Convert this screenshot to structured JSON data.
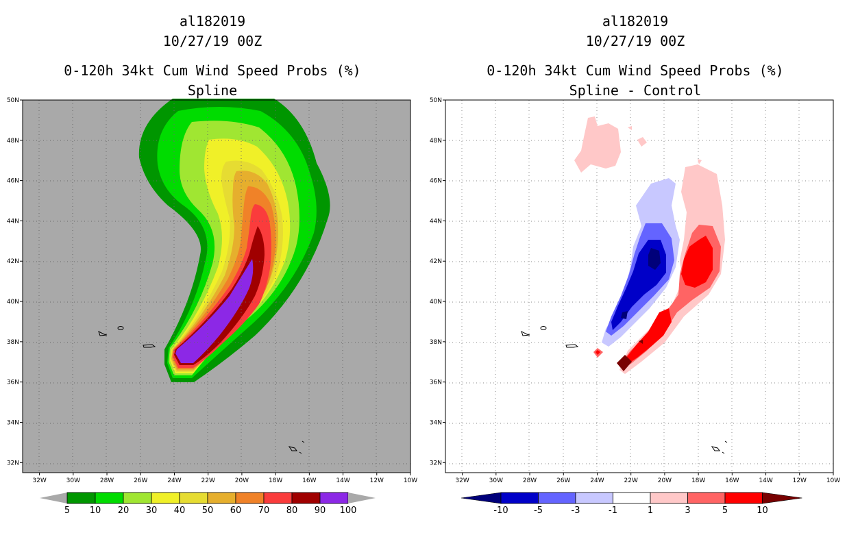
{
  "chart_data": [
    {
      "type": "heatmap",
      "storm_id": "al182019",
      "date": "10/27/19 00Z",
      "title": "0-120h 34kt Cum Wind Speed Probs (%)",
      "subtitle": "Spline",
      "x_ticks": [
        "32W",
        "30W",
        "28W",
        "26W",
        "24W",
        "22W",
        "20W",
        "18W",
        "16W",
        "14W",
        "12W",
        "10W"
      ],
      "y_ticks": [
        "32N",
        "34N",
        "36N",
        "38N",
        "40N",
        "42N",
        "44N",
        "46N",
        "48N",
        "50N"
      ],
      "xlim": [
        -33,
        -10
      ],
      "ylim": [
        31.5,
        50
      ],
      "background_color": "#a9a9a9",
      "grid": true,
      "colorbar": {
        "labels": [
          "5",
          "10",
          "20",
          "30",
          "40",
          "50",
          "60",
          "70",
          "80",
          "90",
          "100"
        ],
        "colors": [
          "#009600",
          "#00dc00",
          "#a0e632",
          "#f0f028",
          "#e6dc32",
          "#e6af2d",
          "#f08228",
          "#fa3c3c",
          "#a00000",
          "#8c28e6"
        ],
        "end_color": "#a9a9a9"
      }
    },
    {
      "type": "heatmap",
      "storm_id": "al182019",
      "date": "10/27/19 00Z",
      "title": "0-120h 34kt Cum Wind Speed Probs (%)",
      "subtitle": "Spline - Control",
      "x_ticks": [
        "32W",
        "30W",
        "28W",
        "26W",
        "24W",
        "22W",
        "20W",
        "18W",
        "16W",
        "14W",
        "12W",
        "10W"
      ],
      "y_ticks": [
        "32N",
        "34N",
        "36N",
        "38N",
        "40N",
        "42N",
        "44N",
        "46N",
        "48N",
        "50N"
      ],
      "xlim": [
        -33,
        -10
      ],
      "ylim": [
        31.5,
        50
      ],
      "background_color": "#ffffff",
      "grid": true,
      "colorbar": {
        "labels": [
          "-10",
          "-5",
          "-3",
          "-1",
          "1",
          "3",
          "5",
          "10"
        ],
        "colors": [
          "#0000c8",
          "#6464ff",
          "#c8c8ff",
          "#ffffff",
          "#ffc8c8",
          "#ff6464",
          "#ff0000"
        ],
        "low_end_color": "#00007a",
        "high_end_color": "#780000"
      }
    }
  ]
}
